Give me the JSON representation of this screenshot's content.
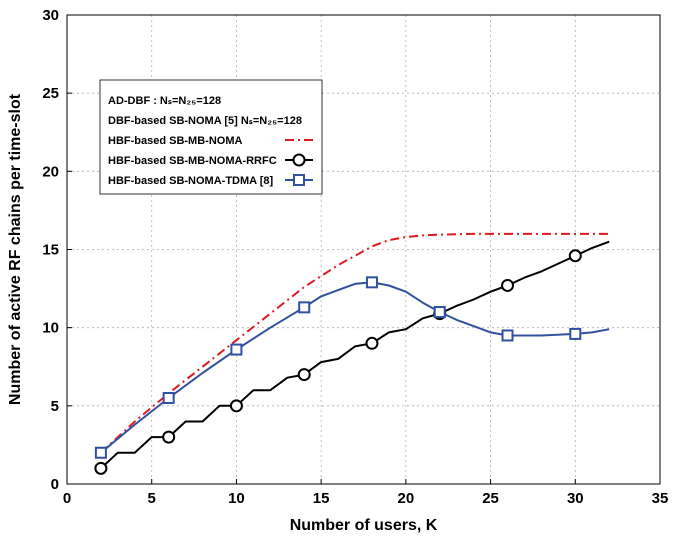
{
  "chart_data": {
    "type": "line",
    "title": "",
    "xlabel": "Number of users, K",
    "ylabel": "Number of active RF chains per time-slot",
    "xlim": [
      0,
      35
    ],
    "ylim": [
      0,
      30
    ],
    "xticks": [
      0,
      5,
      10,
      15,
      20,
      25,
      30,
      35
    ],
    "yticks": [
      0,
      5,
      10,
      15,
      20,
      25,
      30
    ],
    "grid": true,
    "legend_position": "top-left",
    "series": [
      {
        "name": "AD-DBF : Nₛ=N₂₅=128",
        "legend_only": true,
        "color": "#000000"
      },
      {
        "name": "DBF-based SB-NOMA [5]  Nₛ=N₂₅=128",
        "legend_only": true,
        "color": "#000000"
      },
      {
        "name": "HBF-based SB-MB-NOMA",
        "color": "#e0191f",
        "style": "dashdot",
        "x": [
          2,
          4,
          6,
          8,
          10,
          12,
          14,
          16,
          18,
          19,
          20,
          21,
          22,
          24,
          26,
          28,
          30,
          32
        ],
        "y": [
          2,
          4,
          5.8,
          7.5,
          9.2,
          10.9,
          12.6,
          14.0,
          15.2,
          15.6,
          15.8,
          15.9,
          15.95,
          16,
          16,
          16,
          16,
          16
        ]
      },
      {
        "name": "HBF-based SB-MB-NOMA-RRFC",
        "color": "#000000",
        "style": "solid",
        "marker": "circle",
        "x": [
          2,
          3,
          4,
          5,
          6,
          7,
          8,
          9,
          10,
          11,
          12,
          13,
          14,
          15,
          16,
          17,
          18,
          19,
          20,
          21,
          22,
          23,
          24,
          25,
          26,
          27,
          28,
          29,
          30,
          31,
          32
        ],
        "y": [
          1,
          2,
          2,
          3,
          3,
          4,
          4,
          5,
          5,
          6,
          6,
          6.8,
          7,
          7.8,
          8,
          8.8,
          9,
          9.7,
          9.9,
          10.6,
          10.9,
          11.4,
          11.8,
          12.3,
          12.7,
          13.2,
          13.6,
          14.1,
          14.6,
          15.1,
          15.5
        ],
        "marker_x": [
          2,
          6,
          10,
          14,
          18,
          22,
          26,
          30
        ]
      },
      {
        "name": "HBF-based SB-NOMA-TDMA [8]",
        "color": "#3050a0",
        "style": "solid",
        "marker": "square",
        "x": [
          2,
          4,
          6,
          8,
          10,
          12,
          14,
          15,
          16,
          17,
          18,
          19,
          20,
          21,
          22,
          23,
          24,
          25,
          26,
          28,
          30,
          31,
          32
        ],
        "y": [
          2,
          3.8,
          5.5,
          7.1,
          8.6,
          10.0,
          11.3,
          12.0,
          12.4,
          12.8,
          12.9,
          12.7,
          12.3,
          11.6,
          11.0,
          10.5,
          10.1,
          9.7,
          9.5,
          9.5,
          9.6,
          9.7,
          9.9
        ],
        "marker_x": [
          2,
          6,
          10,
          14,
          18,
          22,
          26,
          30
        ]
      }
    ]
  }
}
